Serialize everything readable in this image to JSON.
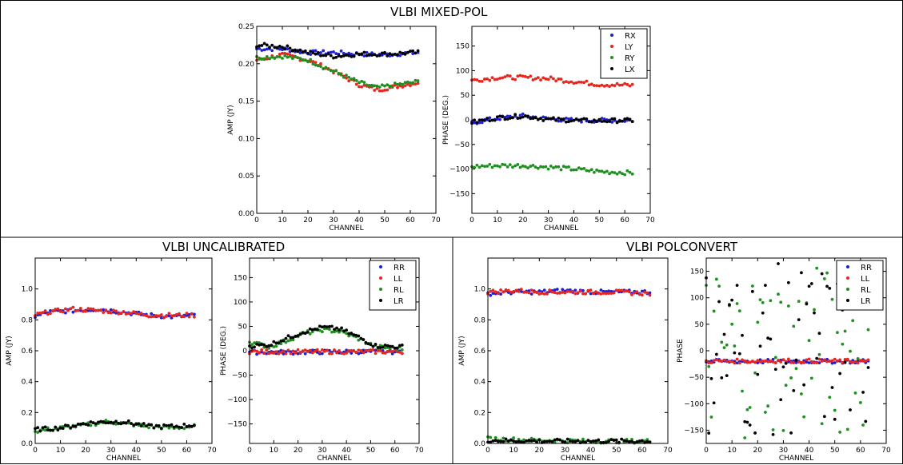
{
  "titles": {
    "top": "VLBI MIXED-POL",
    "bottom_left": "VLBI UNCALIBRATED",
    "bottom_right": "VLBI POLCONVERT"
  },
  "colors": {
    "blue": "#1f1fd6",
    "red": "#e8261f",
    "green": "#1f8f1f",
    "black": "#000000"
  },
  "chart_data": [
    {
      "id": "mixed-amp",
      "type": "scatter",
      "xlabel": "CHANNEL",
      "ylabel": "AMP (JY)",
      "xlim": [
        0,
        70
      ],
      "ylim": [
        0,
        0.25
      ],
      "xticks": [
        0,
        10,
        20,
        30,
        40,
        50,
        60,
        70
      ],
      "yticks": [
        0,
        0.05,
        0.1,
        0.15,
        0.2,
        0.25
      ],
      "yticklabels": [
        "0.00",
        "0.05",
        "0.10",
        "0.15",
        "0.20",
        "0.25"
      ],
      "series": [
        {
          "color": "blue",
          "anchors": [
            [
              0,
              0.22
            ],
            [
              10,
              0.22
            ],
            [
              20,
              0.215
            ],
            [
              30,
              0.215
            ],
            [
              40,
              0.213
            ],
            [
              50,
              0.212
            ],
            [
              63,
              0.215
            ]
          ]
        },
        {
          "color": "red",
          "anchors": [
            [
              0,
              0.205
            ],
            [
              10,
              0.212
            ],
            [
              20,
              0.205
            ],
            [
              30,
              0.19
            ],
            [
              40,
              0.172
            ],
            [
              47,
              0.165
            ],
            [
              55,
              0.17
            ],
            [
              63,
              0.175
            ]
          ]
        },
        {
          "color": "green",
          "anchors": [
            [
              0,
              0.208
            ],
            [
              10,
              0.21
            ],
            [
              20,
              0.205
            ],
            [
              30,
              0.19
            ],
            [
              40,
              0.175
            ],
            [
              47,
              0.168
            ],
            [
              55,
              0.172
            ],
            [
              63,
              0.176
            ]
          ]
        },
        {
          "color": "black",
          "anchors": [
            [
              0,
              0.225
            ],
            [
              10,
              0.223
            ],
            [
              20,
              0.215
            ],
            [
              30,
              0.21
            ],
            [
              40,
              0.213
            ],
            [
              50,
              0.213
            ],
            [
              63,
              0.215
            ]
          ]
        }
      ]
    },
    {
      "id": "mixed-phase",
      "type": "scatter",
      "xlabel": "CHANNEL",
      "ylabel": "PHASE (DEG.)",
      "xlim": [
        0,
        70
      ],
      "ylim": [
        -190,
        190
      ],
      "xticks": [
        0,
        10,
        20,
        30,
        40,
        50,
        60,
        70
      ],
      "yticks": [
        -150,
        -100,
        -50,
        0,
        50,
        100,
        150
      ],
      "legend": {
        "position": "top-right",
        "entries": [
          "RX",
          "LY",
          "RY",
          "LX"
        ]
      },
      "series": [
        {
          "name": "RX",
          "color": "blue",
          "anchors": [
            [
              0,
              -6
            ],
            [
              10,
              3
            ],
            [
              20,
              8
            ],
            [
              30,
              2
            ],
            [
              40,
              -1
            ],
            [
              50,
              -1
            ],
            [
              63,
              -1
            ]
          ]
        },
        {
          "name": "LY",
          "color": "red",
          "anchors": [
            [
              0,
              80
            ],
            [
              10,
              86
            ],
            [
              20,
              86
            ],
            [
              30,
              84
            ],
            [
              40,
              78
            ],
            [
              50,
              72
            ],
            [
              63,
              70
            ]
          ]
        },
        {
          "name": "RY",
          "color": "green",
          "anchors": [
            [
              0,
              -95
            ],
            [
              10,
              -93
            ],
            [
              20,
              -93
            ],
            [
              30,
              -96
            ],
            [
              40,
              -100
            ],
            [
              50,
              -105
            ],
            [
              63,
              -108
            ]
          ]
        },
        {
          "name": "LX",
          "color": "black",
          "anchors": [
            [
              0,
              -5
            ],
            [
              10,
              4
            ],
            [
              20,
              8
            ],
            [
              30,
              1
            ],
            [
              40,
              -1
            ],
            [
              50,
              -2
            ],
            [
              63,
              -1
            ]
          ]
        }
      ]
    },
    {
      "id": "uncal-amp",
      "type": "scatter",
      "xlabel": "CHANNEL",
      "ylabel": "AMP (JY)",
      "xlim": [
        0,
        70
      ],
      "ylim": [
        0,
        1.2
      ],
      "xticks": [
        0,
        10,
        20,
        30,
        40,
        50,
        60,
        70
      ],
      "yticks": [
        0,
        0.2,
        0.4,
        0.6,
        0.8,
        1.0
      ],
      "yticklabels": [
        "0.0",
        "0.2",
        "0.4",
        "0.6",
        "0.8",
        "1.0"
      ],
      "series": [
        {
          "color": "blue",
          "anchors": [
            [
              0,
              0.82
            ],
            [
              5,
              0.85
            ],
            [
              15,
              0.86
            ],
            [
              25,
              0.87
            ],
            [
              35,
              0.85
            ],
            [
              45,
              0.83
            ],
            [
              55,
              0.82
            ],
            [
              63,
              0.83
            ]
          ]
        },
        {
          "color": "red",
          "anchors": [
            [
              0,
              0.83
            ],
            [
              5,
              0.85
            ],
            [
              15,
              0.87
            ],
            [
              25,
              0.86
            ],
            [
              35,
              0.85
            ],
            [
              45,
              0.83
            ],
            [
              55,
              0.83
            ],
            [
              63,
              0.83
            ]
          ]
        },
        {
          "color": "green",
          "anchors": [
            [
              0,
              0.08
            ],
            [
              10,
              0.1
            ],
            [
              20,
              0.12
            ],
            [
              28,
              0.14
            ],
            [
              35,
              0.13
            ],
            [
              45,
              0.11
            ],
            [
              55,
              0.1
            ],
            [
              63,
              0.11
            ]
          ]
        },
        {
          "color": "black",
          "anchors": [
            [
              0,
              0.09
            ],
            [
              10,
              0.1
            ],
            [
              20,
              0.13
            ],
            [
              28,
              0.14
            ],
            [
              35,
              0.14
            ],
            [
              45,
              0.11
            ],
            [
              55,
              0.11
            ],
            [
              63,
              0.12
            ]
          ]
        }
      ]
    },
    {
      "id": "uncal-phase",
      "type": "scatter",
      "xlabel": "CHANNEL",
      "ylabel": "PHASE (DEG.)",
      "xlim": [
        0,
        70
      ],
      "ylim": [
        -190,
        190
      ],
      "xticks": [
        0,
        10,
        20,
        30,
        40,
        50,
        60,
        70
      ],
      "yticks": [
        -150,
        -100,
        -50,
        0,
        50,
        100,
        150
      ],
      "legend": {
        "position": "top-right",
        "entries": [
          "RR",
          "LL",
          "RL",
          "LR"
        ]
      },
      "series": [
        {
          "name": "RR",
          "color": "blue",
          "anchors": [
            [
              0,
              -3
            ],
            [
              20,
              -3
            ],
            [
              40,
              -2
            ],
            [
              63,
              -2
            ]
          ]
        },
        {
          "name": "LL",
          "color": "red",
          "anchors": [
            [
              0,
              -2
            ],
            [
              20,
              -2
            ],
            [
              40,
              -2
            ],
            [
              63,
              -2
            ]
          ]
        },
        {
          "name": "RL",
          "color": "green",
          "anchors": [
            [
              0,
              18
            ],
            [
              8,
              8
            ],
            [
              15,
              20
            ],
            [
              22,
              35
            ],
            [
              30,
              43
            ],
            [
              37,
              40
            ],
            [
              45,
              25
            ],
            [
              52,
              8
            ],
            [
              63,
              4
            ]
          ]
        },
        {
          "name": "LR",
          "color": "black",
          "anchors": [
            [
              0,
              10
            ],
            [
              8,
              12
            ],
            [
              15,
              25
            ],
            [
              22,
              38
            ],
            [
              30,
              48
            ],
            [
              37,
              45
            ],
            [
              45,
              28
            ],
            [
              52,
              10
            ],
            [
              63,
              8
            ]
          ]
        }
      ]
    },
    {
      "id": "polconv-amp",
      "type": "scatter",
      "xlabel": "CHANNEL",
      "ylabel": "AMP (JY)",
      "xlim": [
        0,
        70
      ],
      "ylim": [
        0,
        1.2
      ],
      "xticks": [
        0,
        10,
        20,
        30,
        40,
        50,
        60,
        70
      ],
      "yticks": [
        0,
        0.2,
        0.4,
        0.6,
        0.8,
        1.0
      ],
      "yticklabels": [
        "0.0",
        "0.2",
        "0.4",
        "0.6",
        "0.8",
        "1.0"
      ],
      "series": [
        {
          "color": "blue",
          "anchors": [
            [
              0,
              0.97
            ],
            [
              10,
              0.98
            ],
            [
              20,
              0.98
            ],
            [
              30,
              0.99
            ],
            [
              40,
              0.98
            ],
            [
              50,
              0.98
            ],
            [
              63,
              0.98
            ]
          ]
        },
        {
          "color": "red",
          "anchors": [
            [
              0,
              0.98
            ],
            [
              10,
              0.99
            ],
            [
              20,
              0.98
            ],
            [
              30,
              0.98
            ],
            [
              40,
              0.98
            ],
            [
              50,
              0.98
            ],
            [
              63,
              0.97
            ]
          ]
        },
        {
          "color": "green",
          "anchors": [
            [
              0,
              0.03
            ],
            [
              20,
              0.02
            ],
            [
              40,
              0.015
            ],
            [
              63,
              0.015
            ]
          ]
        },
        {
          "color": "black",
          "anchors": [
            [
              0,
              0.02
            ],
            [
              20,
              0.015
            ],
            [
              40,
              0.015
            ],
            [
              63,
              0.015
            ]
          ]
        }
      ]
    },
    {
      "id": "polconv-phase",
      "type": "scatter",
      "xlabel": "CHANNEL",
      "ylabel": "PHASE",
      "xlim": [
        0,
        70
      ],
      "ylim": [
        -175,
        175
      ],
      "xticks": [
        0,
        10,
        20,
        30,
        40,
        50,
        60,
        70
      ],
      "yticks": [
        -150,
        -100,
        -50,
        0,
        50,
        100,
        150
      ],
      "legend": {
        "position": "top-right",
        "entries": [
          "RR",
          "LL",
          "RL",
          "LR"
        ]
      },
      "series": [
        {
          "name": "RR",
          "color": "blue",
          "anchors": [
            [
              0,
              -20
            ],
            [
              30,
              -20
            ],
            [
              63,
              -20
            ]
          ]
        },
        {
          "name": "LL",
          "color": "red",
          "anchors": [
            [
              0,
              -20
            ],
            [
              30,
              -19
            ],
            [
              63,
              -20
            ]
          ]
        },
        {
          "name": "RL",
          "color": "green",
          "scatter": true
        },
        {
          "name": "LR",
          "color": "black",
          "scatter": true
        }
      ]
    }
  ]
}
